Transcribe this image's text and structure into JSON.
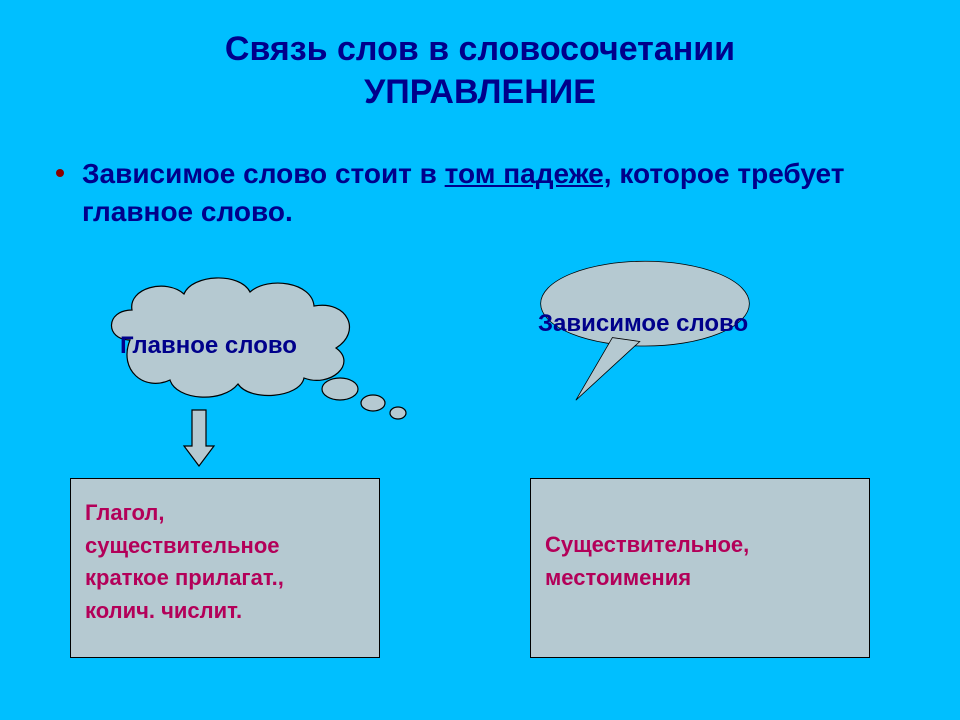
{
  "colors": {
    "background": "#00bfff",
    "title": "#00008b",
    "bodyText": "#00008b",
    "bullet": "#8b0000",
    "shapeFill": "#b5c9d1",
    "shapeBorder": "#000000",
    "boxText": "#b30059",
    "boxBorder": "#000000",
    "boxFill": "#b5c9d1",
    "arrowFill": "#b5c9d1"
  },
  "typography": {
    "titleFontSize": 34,
    "bulletFontSize": 28,
    "labelFontSize": 24,
    "boxFontSize": 22
  },
  "title": {
    "line1": "Связь слов в словосочетании",
    "line2": "УПРАВЛЕНИЕ"
  },
  "bullet": {
    "segments": [
      {
        "text": "Зависимое слово стоит в ",
        "underline": false
      },
      {
        "text": "том падеже,",
        "underline": true
      },
      {
        "text": " которое требует главное слово.",
        "underline": false
      }
    ]
  },
  "cloudLabel": "Главное слово",
  "ellipseLabel": "Зависимое слово",
  "boxLeft": {
    "lines": [
      "Глагол,",
      "существительное",
      "краткое прилагат.,",
      " колич. числит."
    ]
  },
  "boxRight": {
    "lines": [
      "Существительное,",
      " местоимения"
    ]
  },
  "layout": {
    "boxBorderWidth": 1
  }
}
